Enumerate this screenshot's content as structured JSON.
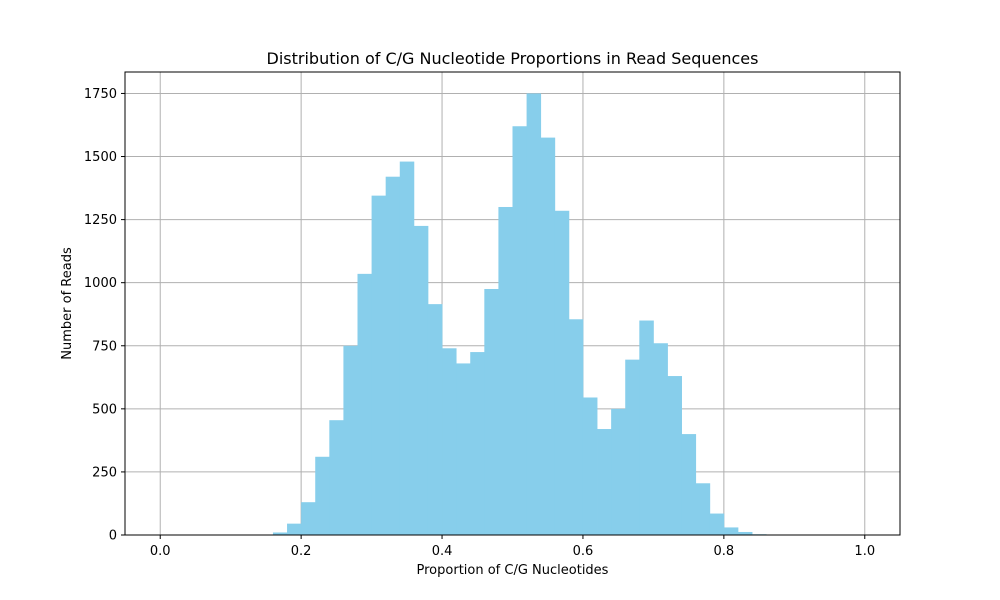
{
  "chart_data": {
    "type": "bar",
    "title": "Distribution of C/G Nucleotide Proportions in Read Sequences",
    "xlabel": "Proportion of C/G Nucleotides",
    "ylabel": "Number of Reads",
    "xlim": [
      -0.05,
      1.05
    ],
    "ylim": [
      0,
      1835
    ],
    "grid": true,
    "bar_color": "#87CEEB",
    "x_ticks": [
      {
        "value": 0.0,
        "label": "0.0"
      },
      {
        "value": 0.2,
        "label": "0.2"
      },
      {
        "value": 0.4,
        "label": "0.4"
      },
      {
        "value": 0.6,
        "label": "0.6"
      },
      {
        "value": 0.8,
        "label": "0.8"
      },
      {
        "value": 1.0,
        "label": "1.0"
      }
    ],
    "y_ticks": [
      {
        "value": 0,
        "label": "0"
      },
      {
        "value": 250,
        "label": "250"
      },
      {
        "value": 500,
        "label": "500"
      },
      {
        "value": 750,
        "label": "750"
      },
      {
        "value": 1000,
        "label": "1000"
      },
      {
        "value": 1250,
        "label": "1250"
      },
      {
        "value": 1500,
        "label": "1500"
      },
      {
        "value": 1750,
        "label": "1750"
      }
    ],
    "bin_edges": [
      0.0,
      0.02,
      0.04,
      0.06,
      0.08,
      0.1,
      0.12,
      0.14,
      0.16,
      0.18,
      0.2,
      0.22,
      0.24,
      0.26,
      0.28,
      0.3,
      0.32,
      0.34,
      0.36,
      0.38,
      0.4,
      0.42,
      0.44,
      0.46,
      0.48,
      0.5,
      0.52,
      0.54,
      0.56,
      0.58,
      0.6,
      0.62,
      0.64,
      0.66,
      0.68,
      0.7,
      0.72,
      0.74,
      0.76,
      0.78,
      0.8,
      0.82,
      0.84,
      0.86,
      0.88,
      0.9,
      0.92,
      0.94,
      0.96,
      0.98,
      1.0
    ],
    "values": [
      0,
      0,
      0,
      0,
      0,
      0,
      0,
      0,
      10,
      45,
      130,
      310,
      455,
      750,
      1035,
      1345,
      1420,
      1480,
      1225,
      915,
      740,
      680,
      725,
      975,
      1300,
      1620,
      1750,
      1575,
      1285,
      855,
      545,
      420,
      500,
      695,
      850,
      760,
      630,
      400,
      205,
      85,
      30,
      12,
      3,
      0,
      0,
      0,
      0,
      0,
      0,
      0
    ]
  }
}
